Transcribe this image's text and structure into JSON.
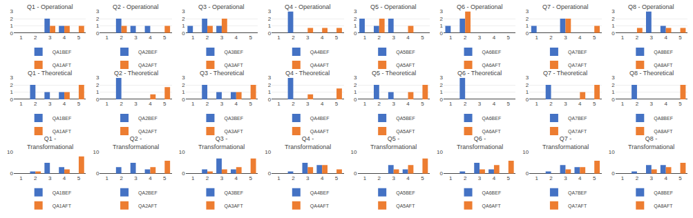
{
  "chart_data": [
    {
      "type": "bar",
      "title": "Q1 - Operational",
      "categories": [
        1,
        2,
        3,
        4,
        5
      ],
      "series": [
        {
          "name": "QA1BEF",
          "color": "#4472c4",
          "values": [
            0,
            0,
            2,
            1,
            0
          ]
        },
        {
          "name": "QA1AFT",
          "color": "#ed7d31",
          "values": [
            0,
            0,
            1,
            1,
            1
          ]
        }
      ],
      "ylim": [
        0,
        3
      ],
      "yticks": [
        0,
        1,
        2,
        3
      ],
      "grid": true,
      "legend": "below"
    },
    {
      "type": "bar",
      "title": "Q2 - Operational",
      "categories": [
        1,
        2,
        3,
        4,
        5
      ],
      "series": [
        {
          "name": "QA2BEF",
          "color": "#4472c4",
          "values": [
            0,
            2,
            1,
            1,
            0
          ]
        },
        {
          "name": "QA2AFT",
          "color": "#ed7d31",
          "values": [
            0,
            1,
            0,
            0,
            1
          ]
        }
      ],
      "ylim": [
        0,
        3
      ],
      "yticks": [
        0,
        1,
        2,
        3
      ],
      "grid": true,
      "legend": "below"
    },
    {
      "type": "bar",
      "title": "Q3 - Operational",
      "categories": [
        1,
        2,
        3,
        4,
        5
      ],
      "series": [
        {
          "name": "QA3BEF",
          "color": "#4472c4",
          "values": [
            1,
            2,
            1,
            0,
            0
          ]
        },
        {
          "name": "QA3AFT",
          "color": "#ed7d31",
          "values": [
            0,
            1,
            2,
            0,
            0
          ]
        }
      ],
      "ylim": [
        0,
        3
      ],
      "yticks": [
        0,
        1,
        2,
        3
      ],
      "grid": true,
      "legend": "below"
    },
    {
      "type": "bar",
      "title": "Q4 - Operational",
      "categories": [
        1,
        2,
        3,
        4,
        5
      ],
      "series": [
        {
          "name": "QA4BEF",
          "color": "#4472c4",
          "values": [
            0,
            3,
            0,
            0,
            0
          ]
        },
        {
          "name": "QA4AFT",
          "color": "#ed7d31",
          "values": [
            0,
            0,
            0.7,
            0.7,
            0.7
          ]
        }
      ],
      "ylim": [
        0,
        3
      ],
      "yticks": [
        0,
        1,
        2,
        3
      ],
      "grid": true,
      "legend": "below"
    },
    {
      "type": "bar",
      "title": "Q5 - Operational",
      "categories": [
        1,
        2,
        3,
        4,
        5
      ],
      "series": [
        {
          "name": "QA5BEF",
          "color": "#4472c4",
          "values": [
            2,
            1,
            2,
            0,
            0
          ]
        },
        {
          "name": "QA5AFT",
          "color": "#ed7d31",
          "values": [
            0,
            2,
            0,
            1,
            0
          ]
        }
      ],
      "ylim": [
        0,
        3
      ],
      "yticks": [
        0,
        1,
        2,
        3
      ],
      "grid": true,
      "legend": "below"
    },
    {
      "type": "bar",
      "title": "Q6 - Operational",
      "categories": [
        1,
        2,
        3,
        4,
        5
      ],
      "series": [
        {
          "name": "QA6BEF",
          "color": "#4472c4",
          "values": [
            1,
            2,
            0,
            0,
            0
          ]
        },
        {
          "name": "QA6AFT",
          "color": "#ed7d31",
          "values": [
            0,
            3,
            0,
            0,
            0
          ]
        }
      ],
      "ylim": [
        0,
        3
      ],
      "yticks": [
        0,
        1,
        2,
        3
      ],
      "grid": true,
      "legend": "below"
    },
    {
      "type": "bar",
      "title": "Q7 - Operational",
      "categories": [
        1,
        2,
        3,
        4,
        5
      ],
      "series": [
        {
          "name": "QA7BEF",
          "color": "#4472c4",
          "values": [
            1,
            0,
            2,
            0,
            0
          ]
        },
        {
          "name": "QA7AFT",
          "color": "#ed7d31",
          "values": [
            0,
            0,
            2,
            0,
            1
          ]
        }
      ],
      "ylim": [
        0,
        3
      ],
      "yticks": [
        0,
        1,
        2,
        3
      ],
      "grid": true,
      "legend": "below"
    },
    {
      "type": "bar",
      "title": "Q8 - Operational",
      "categories": [
        1,
        2,
        3,
        4,
        5
      ],
      "series": [
        {
          "name": "QA8BEF",
          "color": "#4472c4",
          "values": [
            0,
            0,
            3,
            1,
            0
          ]
        },
        {
          "name": "QA8AFT",
          "color": "#ed7d31",
          "values": [
            0,
            0.7,
            0,
            0.7,
            0.7
          ]
        }
      ],
      "ylim": [
        0,
        3
      ],
      "yticks": [
        0,
        1,
        2,
        3
      ],
      "grid": true,
      "legend": "below"
    },
    {
      "type": "bar",
      "title": "Q1 - Theoretical",
      "categories": [
        1,
        2,
        3,
        4,
        5
      ],
      "series": [
        {
          "name": "QA1BEF",
          "color": "#4472c4",
          "values": [
            0,
            2,
            1,
            1,
            0
          ]
        },
        {
          "name": "QA1AFT",
          "color": "#ed7d31",
          "values": [
            0,
            0,
            0,
            1,
            2
          ]
        }
      ],
      "ylim": [
        0,
        3
      ],
      "yticks": [
        0,
        1,
        2,
        3
      ],
      "grid": true,
      "legend": "below"
    },
    {
      "type": "bar",
      "title": "Q2 - Theoretical",
      "categories": [
        1,
        2,
        3,
        4,
        5
      ],
      "series": [
        {
          "name": "QA2BEF",
          "color": "#4472c4",
          "values": [
            0,
            3,
            0,
            0,
            0
          ]
        },
        {
          "name": "QA2AFT",
          "color": "#ed7d31",
          "values": [
            0,
            0,
            0,
            0.7,
            1.7
          ]
        }
      ],
      "ylim": [
        0,
        3
      ],
      "yticks": [
        0,
        1,
        2,
        3
      ],
      "grid": true,
      "legend": "below"
    },
    {
      "type": "bar",
      "title": "Q3 - Theoretical",
      "categories": [
        1,
        2,
        3,
        4,
        5
      ],
      "series": [
        {
          "name": "QA3BEF",
          "color": "#4472c4",
          "values": [
            0,
            2,
            1,
            1,
            0
          ]
        },
        {
          "name": "QA3AFT",
          "color": "#ed7d31",
          "values": [
            0,
            0,
            0,
            1,
            2
          ]
        }
      ],
      "ylim": [
        0,
        3
      ],
      "yticks": [
        0,
        1,
        2,
        3
      ],
      "grid": true,
      "legend": "below"
    },
    {
      "type": "bar",
      "title": "Q4 - Theoretical",
      "categories": [
        1,
        2,
        3,
        4,
        5
      ],
      "series": [
        {
          "name": "QA4BEF",
          "color": "#4472c4",
          "values": [
            0,
            3,
            0,
            0,
            0
          ]
        },
        {
          "name": "QA4AFT",
          "color": "#ed7d31",
          "values": [
            0,
            0,
            0.7,
            0,
            1.5
          ]
        }
      ],
      "ylim": [
        0,
        3
      ],
      "yticks": [
        0,
        1,
        2,
        3
      ],
      "grid": true,
      "legend": "below"
    },
    {
      "type": "bar",
      "title": "Q5 - Theoretical",
      "categories": [
        1,
        2,
        3,
        4,
        5
      ],
      "series": [
        {
          "name": "QA5BEF",
          "color": "#4472c4",
          "values": [
            0,
            2,
            1,
            0,
            0
          ]
        },
        {
          "name": "QA5AFT",
          "color": "#ed7d31",
          "values": [
            0,
            0,
            0,
            1,
            2
          ]
        }
      ],
      "ylim": [
        0,
        3
      ],
      "yticks": [
        0,
        1,
        2,
        3
      ],
      "grid": true,
      "legend": "below"
    },
    {
      "type": "bar",
      "title": "Q6 - Theoretical",
      "categories": [
        1,
        2,
        3,
        4,
        5
      ],
      "series": [
        {
          "name": "QA6BEF",
          "color": "#4472c4",
          "values": [
            0,
            3,
            0,
            0,
            0
          ]
        },
        {
          "name": "QA6AFT",
          "color": "#ed7d31",
          "values": [
            0,
            0,
            0,
            0,
            0
          ]
        }
      ],
      "ylim": [
        0,
        3
      ],
      "yticks": [
        0,
        1,
        2,
        3
      ],
      "grid": true,
      "legend": "below"
    },
    {
      "type": "bar",
      "title": "Q7 - Theoretical",
      "categories": [
        1,
        2,
        3,
        4,
        5
      ],
      "series": [
        {
          "name": "QA7BEF",
          "color": "#4472c4",
          "values": [
            0,
            2,
            0,
            0,
            0
          ]
        },
        {
          "name": "QA7AFT",
          "color": "#ed7d31",
          "values": [
            0,
            0,
            0,
            1,
            2
          ]
        }
      ],
      "ylim": [
        0,
        3
      ],
      "yticks": [
        0,
        1,
        2,
        3
      ],
      "grid": true,
      "legend": "below"
    },
    {
      "type": "bar",
      "title": "Q8 - Theoretical",
      "categories": [
        1,
        2,
        3,
        4,
        5
      ],
      "series": [
        {
          "name": "QA8BEF",
          "color": "#4472c4",
          "values": [
            0,
            2,
            0,
            0,
            0
          ]
        },
        {
          "name": "QA8AFT",
          "color": "#ed7d31",
          "values": [
            0,
            0,
            0,
            0,
            2
          ]
        }
      ],
      "ylim": [
        0,
        3
      ],
      "yticks": [
        0,
        1,
        2,
        3
      ],
      "grid": true,
      "legend": "below"
    },
    {
      "type": "bar",
      "title": "Q1 -\nTransformational",
      "categories": [
        1,
        2,
        3,
        4,
        5
      ],
      "series": [
        {
          "name": "QA1BEF",
          "color": "#4472c4",
          "values": [
            0,
            1,
            5,
            3,
            0
          ]
        },
        {
          "name": "QA1AFT",
          "color": "#ed7d31",
          "values": [
            0,
            1,
            0,
            2,
            8
          ]
        }
      ],
      "ylim": [
        0,
        10
      ],
      "yticks": [
        0,
        10
      ],
      "grid": true,
      "legend": "below"
    },
    {
      "type": "bar",
      "title": "Q2 -\nTransformational",
      "categories": [
        1,
        2,
        3,
        4,
        5
      ],
      "series": [
        {
          "name": "QA2BEF",
          "color": "#4472c4",
          "values": [
            0,
            3,
            5,
            2,
            0
          ]
        },
        {
          "name": "QA2AFT",
          "color": "#ed7d31",
          "values": [
            0,
            0,
            0,
            3,
            6
          ]
        }
      ],
      "ylim": [
        0,
        10
      ],
      "yticks": [
        0,
        10
      ],
      "grid": true,
      "legend": "below"
    },
    {
      "type": "bar",
      "title": "Q3 -\nTransformational",
      "categories": [
        1,
        2,
        3,
        4,
        5
      ],
      "series": [
        {
          "name": "QA3BEF",
          "color": "#4472c4",
          "values": [
            0,
            2,
            7,
            2,
            0
          ]
        },
        {
          "name": "QA3AFT",
          "color": "#ed7d31",
          "values": [
            0,
            1,
            2,
            3,
            7
          ]
        }
      ],
      "ylim": [
        0,
        10
      ],
      "yticks": [
        0,
        10
      ],
      "grid": true,
      "legend": "below"
    },
    {
      "type": "bar",
      "title": "Q4 -\nTransformational",
      "categories": [
        1,
        2,
        3,
        4,
        5
      ],
      "series": [
        {
          "name": "QA4BEF",
          "color": "#4472c4",
          "values": [
            0,
            1,
            5,
            4,
            0
          ]
        },
        {
          "name": "QA4AFT",
          "color": "#ed7d31",
          "values": [
            0,
            0,
            3,
            4,
            2
          ]
        }
      ],
      "ylim": [
        0,
        10
      ],
      "yticks": [
        0,
        10
      ],
      "grid": true,
      "legend": "below"
    },
    {
      "type": "bar",
      "title": "Q5 -\nTransformational",
      "categories": [
        1,
        2,
        3,
        4,
        5
      ],
      "series": [
        {
          "name": "QA5BEF",
          "color": "#4472c4",
          "values": [
            0,
            0,
            4,
            2,
            0
          ]
        },
        {
          "name": "QA5AFT",
          "color": "#ed7d31",
          "values": [
            0,
            0,
            2,
            4,
            7
          ]
        }
      ],
      "ylim": [
        0,
        10
      ],
      "yticks": [
        0,
        10
      ],
      "grid": true,
      "legend": "below"
    },
    {
      "type": "bar",
      "title": "Q6 -\nTransformational",
      "categories": [
        1,
        2,
        3,
        4,
        5
      ],
      "series": [
        {
          "name": "QA6BEF",
          "color": "#4472c4",
          "values": [
            0,
            1,
            5,
            2,
            0
          ]
        },
        {
          "name": "QA6AFT",
          "color": "#ed7d31",
          "values": [
            0,
            0,
            2,
            4,
            6
          ]
        }
      ],
      "ylim": [
        0,
        10
      ],
      "yticks": [
        0,
        10
      ],
      "grid": true,
      "legend": "below"
    },
    {
      "type": "bar",
      "title": "Q7 -\nTransformational",
      "categories": [
        1,
        2,
        3,
        4,
        5
      ],
      "series": [
        {
          "name": "QA7BEF",
          "color": "#4472c4",
          "values": [
            0,
            1,
            4,
            3,
            0
          ]
        },
        {
          "name": "QA7AFT",
          "color": "#ed7d31",
          "values": [
            0,
            0,
            2,
            3,
            6
          ]
        }
      ],
      "ylim": [
        0,
        10
      ],
      "yticks": [
        0,
        10
      ],
      "grid": true,
      "legend": "below"
    },
    {
      "type": "bar",
      "title": "Q8 -\nTransformational",
      "categories": [
        1,
        2,
        3,
        4,
        5
      ],
      "series": [
        {
          "name": "QA8BEF",
          "color": "#4472c4",
          "values": [
            0,
            1,
            4,
            4,
            0
          ]
        },
        {
          "name": "QA8AFT",
          "color": "#ed7d31",
          "values": [
            0,
            0,
            2,
            3,
            5
          ]
        }
      ],
      "ylim": [
        0,
        10
      ],
      "yticks": [
        0,
        10
      ],
      "grid": true,
      "legend": "below"
    }
  ]
}
